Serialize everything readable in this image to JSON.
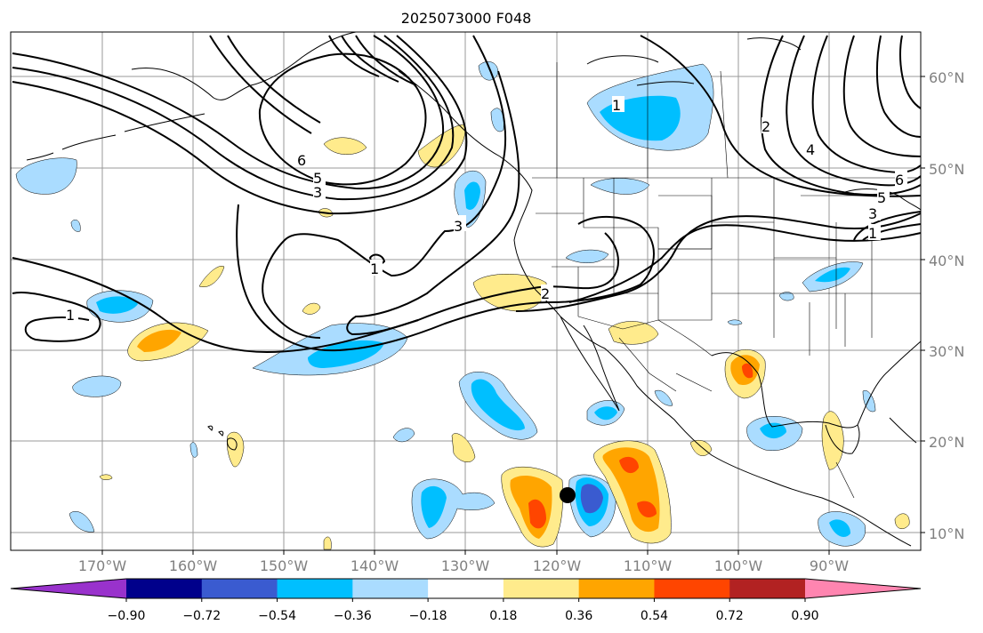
{
  "title": "2025073000 F048",
  "map": {
    "lat_labels": [
      "60°N",
      "50°N",
      "40°N",
      "30°N",
      "20°N",
      "10°N"
    ],
    "lon_labels": [
      "170°W",
      "160°W",
      "150°W",
      "140°W",
      "130°W",
      "120°W",
      "110°W",
      "100°W",
      "90°W"
    ]
  },
  "colorbar": {
    "colors": [
      "#9932cc",
      "#00008b",
      "#3a5bd0",
      "#00bfff",
      "#aadcff",
      "#ffffff",
      "#ffeb8c",
      "#ffa500",
      "#ff4500",
      "#b22222",
      "#ff85b0"
    ],
    "tick_labels": [
      "−0.90",
      "−0.72",
      "−0.54",
      "−0.36",
      "−0.18",
      "0.18",
      "0.36",
      "0.54",
      "0.72",
      "0.90"
    ]
  },
  "contour_labels": [
    "6",
    "5",
    "3",
    "3",
    "1",
    "1",
    "1",
    "2",
    "2",
    "4",
    "6",
    "5",
    "3",
    "1"
  ],
  "marker": {
    "lat": 14,
    "lon": -118.5,
    "color": "#000000"
  }
}
